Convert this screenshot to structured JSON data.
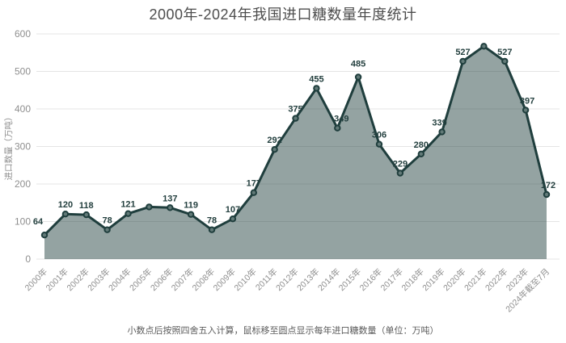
{
  "chart_data": {
    "type": "area",
    "title": "2000年-2024年我国进口糖数量年度统计",
    "xlabel": "",
    "ylabel": "进口数量（万吨）",
    "ylim": [
      0,
      600
    ],
    "y_ticks": [
      0,
      100,
      200,
      300,
      400,
      500,
      600
    ],
    "grid": true,
    "legend": false,
    "categories": [
      "2000年",
      "2001年",
      "2002年",
      "2003年",
      "2004年",
      "2005年",
      "2006年",
      "2007年",
      "2008年",
      "2009年",
      "2010年",
      "2011年",
      "2012年",
      "2013年",
      "2014年",
      "2015年",
      "2016年",
      "2017年",
      "2018年",
      "2019年",
      "2020年",
      "2021年",
      "2022年",
      "2023年",
      "2024年截至7月"
    ],
    "values": [
      64,
      120,
      118,
      78,
      121,
      139,
      137,
      119,
      78,
      107,
      177,
      292,
      375,
      455,
      349,
      485,
      306,
      229,
      280,
      339,
      527,
      567,
      527,
      397,
      172
    ],
    "point_labels": [
      "64",
      "120",
      "118",
      "78",
      "121",
      "",
      "137",
      "119",
      "78",
      "107",
      "177",
      "292",
      "375",
      "455",
      "349",
      "485",
      "306",
      "229",
      "280",
      "339",
      "527",
      "",
      "527",
      "397",
      "172"
    ],
    "colors": {
      "line": "#1f3e3d",
      "fill": "rgba(31,62,61,0.48)",
      "marker_fill": "#627a78",
      "label": "#24403f",
      "grid": "#e4e4e4",
      "tick": "#8f8f8f",
      "title": "#4d4d4d",
      "footer": "#5b5b5b"
    }
  },
  "footer": {
    "note": "小数点后按照四舍五入计算，鼠标移至圆点显示每年进口糖数量（单位：万吨）"
  }
}
